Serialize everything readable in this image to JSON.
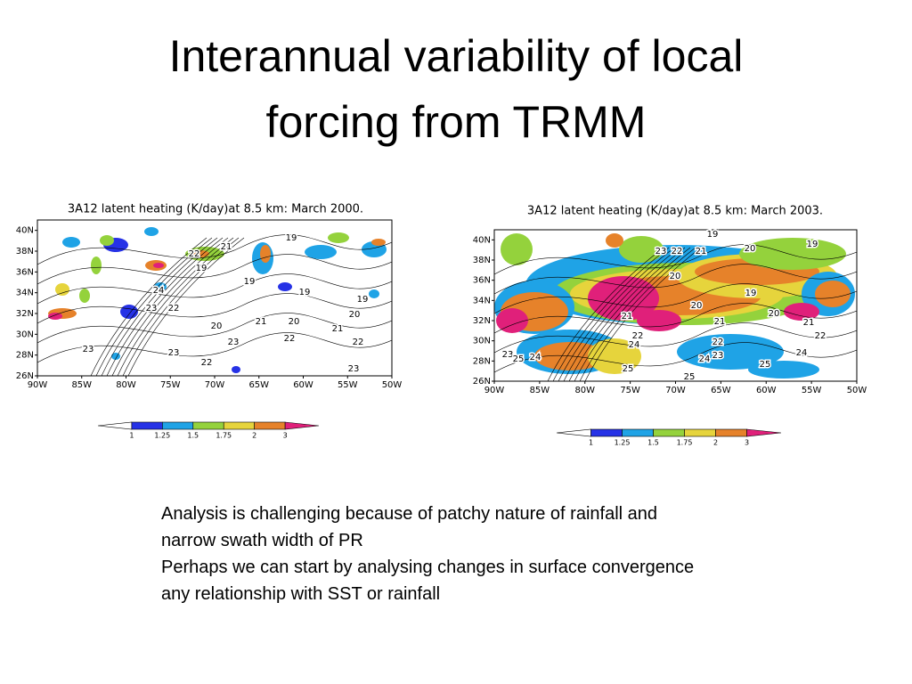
{
  "title": "Interannual variability of local forcing from TRMM",
  "maps": [
    {
      "title": "3A12 latent heating (K/day)at 8.5 km: March 2000.",
      "lat_ticks": [
        "40N",
        "38N",
        "36N",
        "34N",
        "32N",
        "30N",
        "28N",
        "26N"
      ],
      "lon_ticks": [
        "90W",
        "85W",
        "80W",
        "75W",
        "70W",
        "65W",
        "60W",
        "55W",
        "50W"
      ],
      "colorbar": [
        1,
        1.25,
        1.5,
        1.75,
        2,
        3
      ],
      "contour_labels": [
        19,
        21,
        22,
        19,
        19,
        19,
        24,
        23,
        22,
        19,
        20,
        20,
        21,
        20,
        21,
        23,
        23,
        22,
        22,
        23,
        22,
        23
      ]
    },
    {
      "title": "3A12 latent heating (K/day)at 8.5 km: March 2003.",
      "lat_ticks": [
        "40N",
        "38N",
        "36N",
        "34N",
        "32N",
        "30N",
        "28N",
        "26N"
      ],
      "lon_ticks": [
        "90W",
        "85W",
        "80W",
        "75W",
        "70W",
        "65W",
        "60W",
        "55W",
        "50W"
      ],
      "colorbar": [
        1,
        1.25,
        1.5,
        1.75,
        2,
        3
      ],
      "contour_labels": [
        19,
        23,
        22,
        21,
        20,
        19,
        20,
        19,
        20,
        21,
        21,
        20,
        21,
        22,
        24,
        22,
        22,
        23,
        24,
        24,
        23,
        25,
        24,
        25,
        25,
        25
      ]
    }
  ],
  "text": [
    "Analysis is challenging because of patchy nature of rainfall and narrow swath width of PR",
    "Perhaps we can start by analysing changes in surface convergence any relationship with SST or rainfall"
  ]
}
